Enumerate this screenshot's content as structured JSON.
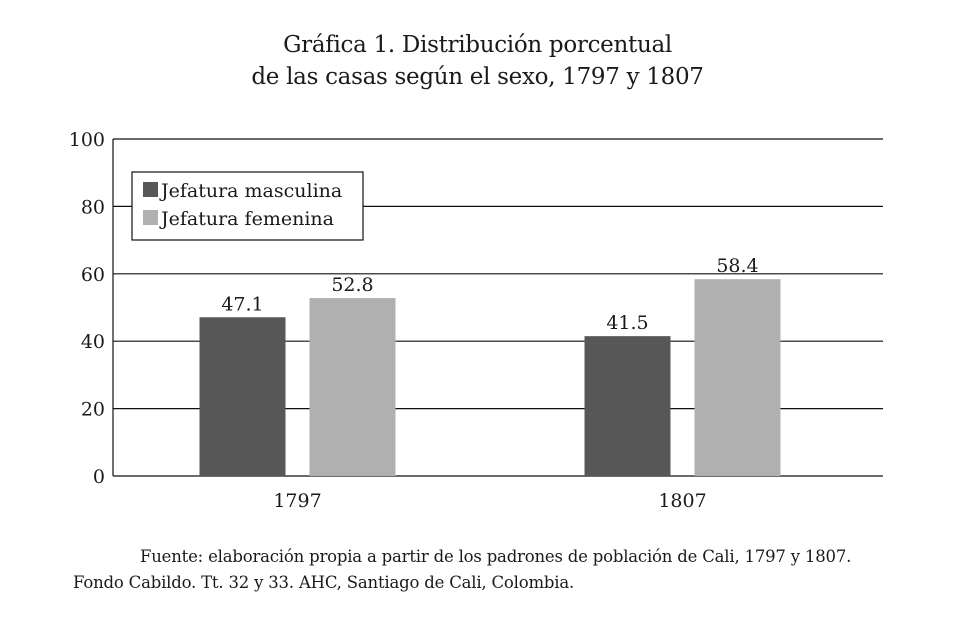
{
  "chart_data": {
    "type": "bar",
    "title_line1": "Gráfica 1. Distribución porcentual",
    "title_line2": "de las casas según el sexo, 1797 y 1807",
    "categories": [
      "1797",
      "1807"
    ],
    "series": [
      {
        "name": "Jefatura masculina",
        "values": [
          47.1,
          41.5
        ],
        "color": "#575757"
      },
      {
        "name": "Jefatura femenina",
        "values": [
          52.8,
          58.4
        ],
        "color": "#b0b0b0"
      }
    ],
    "ylim": [
      0,
      100
    ],
    "yticks": [
      0,
      20,
      40,
      60,
      80,
      100
    ],
    "grid": true,
    "legend_position": "top-left",
    "xlabel": "",
    "ylabel": ""
  },
  "source": {
    "line1": "Fuente: elaboración propia a partir de los padrones de población de Cali, 1797 y 1807.",
    "line2": "Fondo Cabildo. Tt. 32 y 33. AHC, Santiago de Cali, Colombia."
  }
}
